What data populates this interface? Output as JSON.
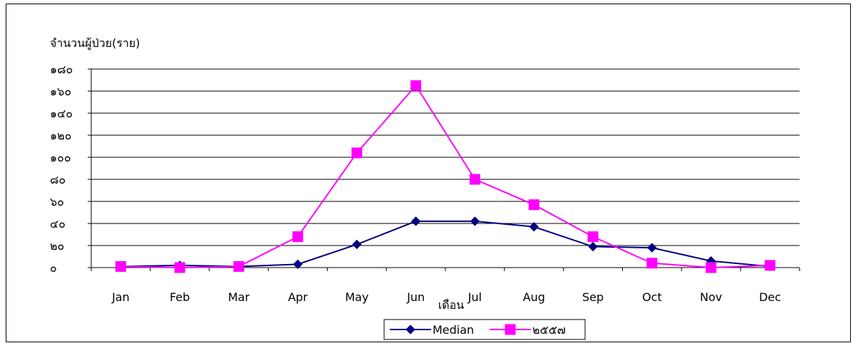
{
  "chart_data": {
    "type": "line",
    "title": "",
    "ylabel": "จำนวนผู้ป่วย(ราย)",
    "xlabel": "เดือน",
    "categories": [
      "Jan",
      "Feb",
      "Mar",
      "Apr",
      "May",
      "Jun",
      "Jul",
      "Aug",
      "Sep",
      "Oct",
      "Nov",
      "Dec"
    ],
    "ylim": [
      0,
      180
    ],
    "yticks": [
      0,
      20,
      40,
      60,
      80,
      100,
      120,
      140,
      160,
      180
    ],
    "ytick_labels": [
      "๐",
      "๒๐",
      "๔๐",
      "๖๐",
      "๘๐",
      "๑๐๐",
      "๑๒๐",
      "๑๔๐",
      "๑๖๐",
      "๑๘๐"
    ],
    "grid": true,
    "legend_position": "bottom",
    "series": [
      {
        "name": "Median",
        "color": "#000080",
        "marker": "diamond",
        "values": [
          1,
          2,
          1,
          3,
          21,
          42,
          42,
          37,
          19,
          18,
          6,
          1
        ]
      },
      {
        "name": "๒๕๕๗",
        "color": "#ff00ff",
        "marker": "square",
        "values": [
          1,
          0,
          1,
          28,
          104,
          165,
          80,
          57,
          28,
          4,
          0,
          2
        ]
      }
    ]
  }
}
